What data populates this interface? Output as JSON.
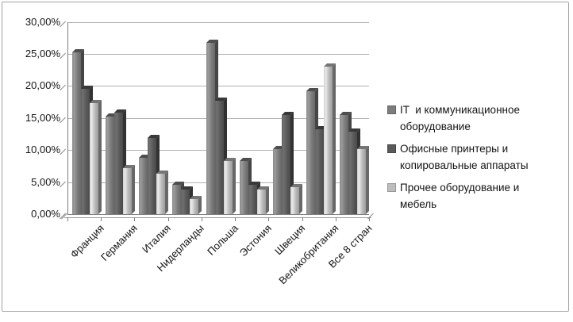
{
  "chart_data": {
    "type": "bar",
    "title": "",
    "categories": [
      "Франция",
      "Германия",
      "Италия",
      "Нидерланды",
      "Польша",
      "Эстония",
      "Швеция",
      "Великобритания",
      "Все 8 стран"
    ],
    "series": [
      {
        "name": "IT  и коммуникационное оборудование",
        "color": "#7d7d7d",
        "values": [
          25.2,
          15.2,
          8.8,
          4.6,
          26.7,
          8.3,
          10.2,
          19.2,
          15.5
        ]
      },
      {
        "name": "Офисные принтеры и копировальные аппараты",
        "color": "#5a5a5a",
        "values": [
          19.6,
          15.8,
          11.9,
          3.8,
          17.7,
          4.6,
          15.5,
          13.2,
          12.9
        ]
      },
      {
        "name": "Прочее оборудование и мебель",
        "color": "#bdbdbd",
        "values": [
          17.3,
          7.2,
          6.3,
          2.3,
          8.3,
          3.8,
          4.2,
          23.0,
          10.1
        ]
      }
    ],
    "y_axis": {
      "min": 0,
      "max": 30,
      "step": 5,
      "tick_labels": [
        "0,00%",
        "5,00%",
        "10,00%",
        "15,00%",
        "20,00%",
        "25,00%",
        "30,00%"
      ],
      "format": "percent-decimal-comma"
    },
    "x_axis": {
      "label_rotation_deg": -45
    },
    "legend_position": "right",
    "grid": true,
    "style": "3d-clustered-column-grayscale"
  },
  "legend": {
    "items": [
      {
        "label": "IT  и коммуникационное оборудование"
      },
      {
        "label": "Офисные принтеры и копировальные аппараты"
      },
      {
        "label": "Прочее оборудование и мебель"
      }
    ]
  },
  "colors": {
    "gridline": "#b0b0b0",
    "axis": "#7f7f7f",
    "text": "#141414",
    "frame_border": "#a3a3a3",
    "background": "#ffffff"
  }
}
